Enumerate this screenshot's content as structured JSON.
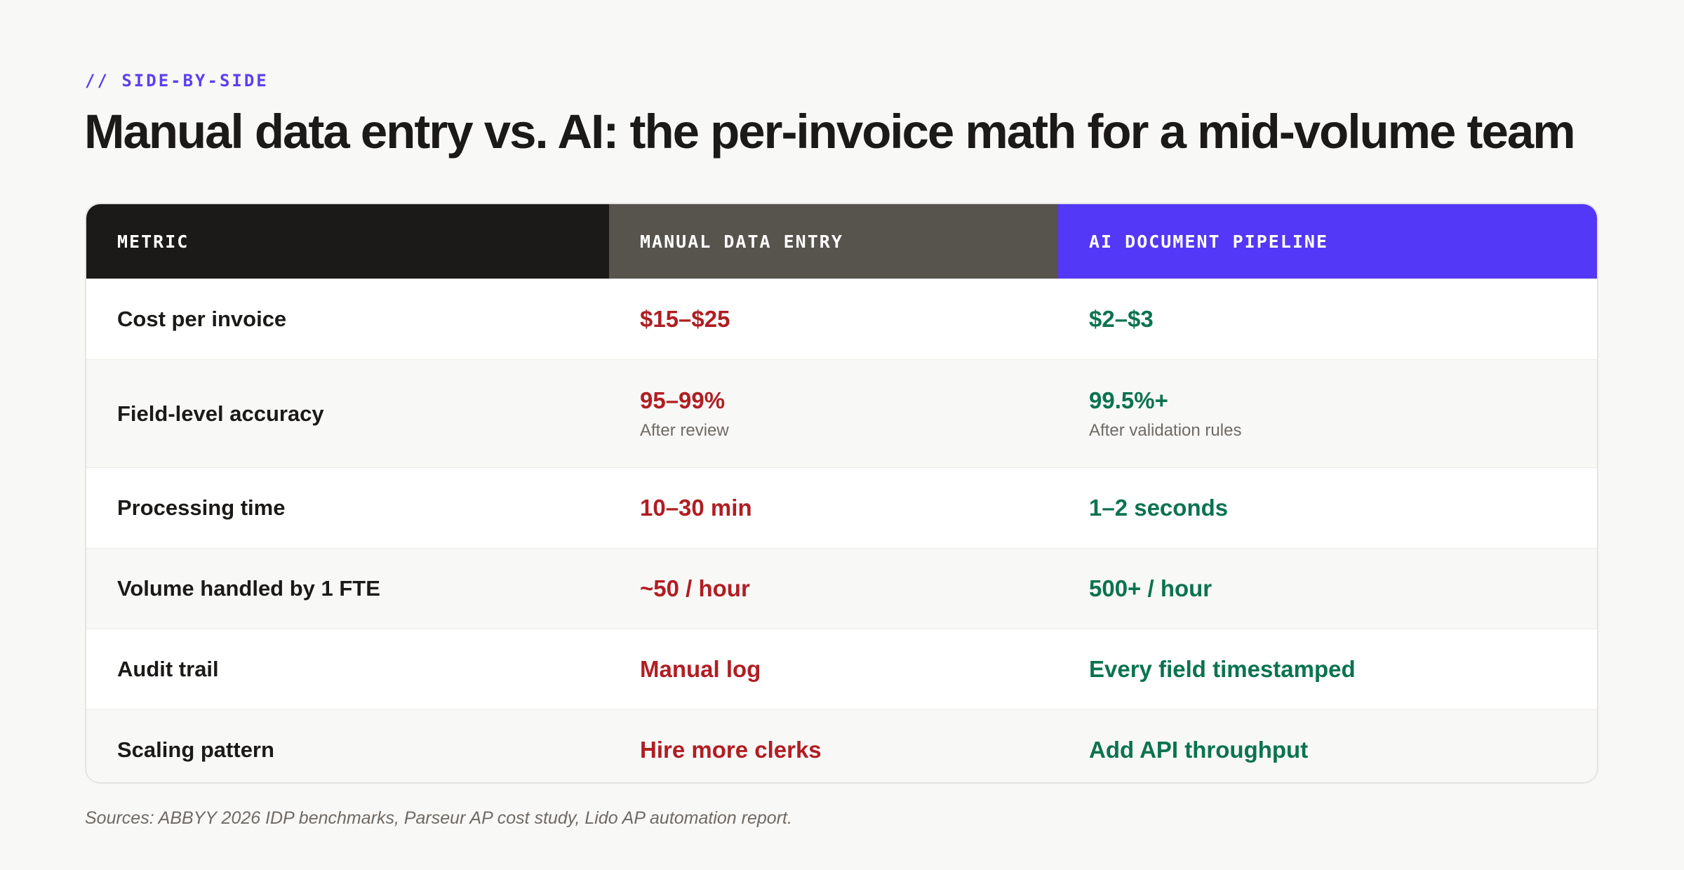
{
  "eyebrow": "// SIDE-BY-SIDE",
  "title": "Manual data entry vs. AI: the per-invoice math for a mid-volume team",
  "table": {
    "headers": {
      "metric": "METRIC",
      "manual": "MANUAL DATA ENTRY",
      "ai": "AI DOCUMENT PIPELINE"
    },
    "rows": [
      {
        "metric": "Cost per invoice",
        "manual": "$15–$25",
        "ai": "$2–$3"
      },
      {
        "metric": "Field-level accuracy",
        "manual": "95–99%",
        "manual_note": "After review",
        "ai": "99.5%+",
        "ai_note": "After validation rules"
      },
      {
        "metric": "Processing time",
        "manual": "10–30 min",
        "ai": "1–2 seconds"
      },
      {
        "metric": "Volume handled by 1 FTE",
        "manual": "~50 / hour",
        "ai": "500+ / hour"
      },
      {
        "metric": "Audit trail",
        "manual": "Manual log",
        "ai": "Every field timestamped"
      },
      {
        "metric": "Scaling pattern",
        "manual": "Hire more clerks",
        "ai": "Add API throughput"
      }
    ]
  },
  "sources": "Sources: ABBYY 2026 IDP benchmarks, Parseur AP cost study, Lido AP automation report.",
  "colors": {
    "accent": "#5438f7",
    "manual_value": "#b01e23",
    "ai_value": "#0b7350",
    "header_metric_bg": "#1b1a18",
    "header_manual_bg": "#57544e"
  }
}
